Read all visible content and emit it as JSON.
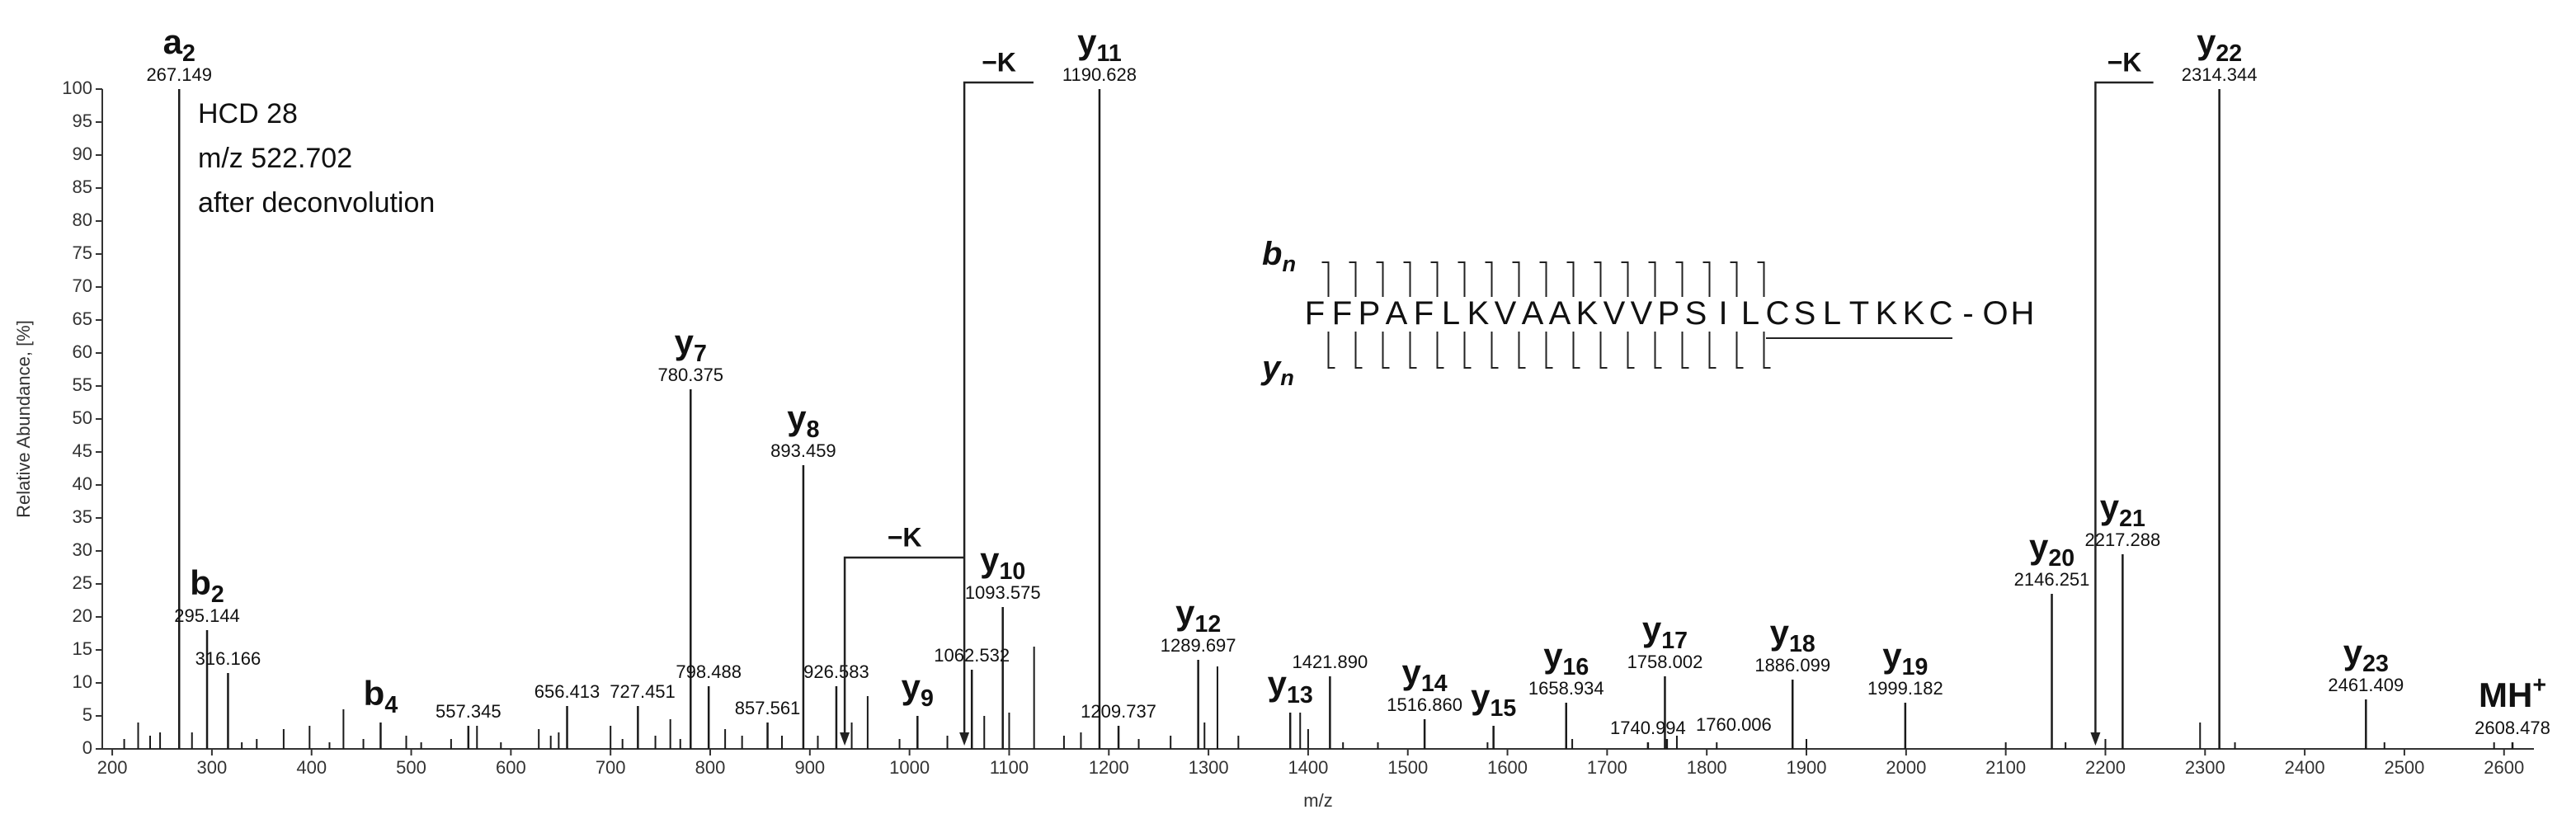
{
  "chart_data": {
    "type": "spectrum",
    "x_label": "m/z",
    "y_label": "Relative Abundance, [%]",
    "info": [
      "HCD 28",
      "m/z 522.702",
      "after deconvolution"
    ],
    "xlim": [
      190,
      2630
    ],
    "ylim": [
      0,
      100
    ],
    "xticks": [
      200,
      300,
      400,
      500,
      600,
      700,
      800,
      900,
      1000,
      1100,
      1200,
      1300,
      1400,
      1500,
      1600,
      1700,
      1800,
      1900,
      2000,
      2100,
      2200,
      2300,
      2400,
      2500,
      2600
    ],
    "yticks": [
      0,
      5,
      10,
      15,
      20,
      25,
      30,
      35,
      40,
      45,
      50,
      55,
      60,
      65,
      70,
      75,
      80,
      85,
      90,
      95,
      100
    ],
    "color": "#1a1a1a",
    "peaks": {
      "x": [
        267.149,
        295.144,
        316.166,
        469.3,
        557.345,
        656.413,
        727.451,
        780.375,
        798.488,
        857.561,
        893.459,
        926.583,
        1008,
        1062.532,
        1093.575,
        1190.628,
        1209.737,
        1289.697,
        1382,
        1421.89,
        1516.86,
        1586,
        1658.934,
        1740.994,
        1758.002,
        1760.006,
        1886.099,
        1999.182,
        2146.251,
        2217.288,
        2314.344,
        2461.409,
        2608.478
      ],
      "values": [
        100,
        18,
        11.5,
        4,
        3.5,
        6.5,
        6.5,
        54.5,
        9.5,
        4,
        43,
        9.5,
        5,
        12,
        21.5,
        100,
        3.5,
        13.5,
        5.5,
        11,
        4.5,
        3.5,
        7,
        1,
        11,
        1.5,
        10.5,
        7,
        23.5,
        29.5,
        100,
        7.5,
        1
      ],
      "mz_labels": [
        "267.149",
        "295.144",
        "316.166",
        null,
        "557.345",
        "656.413",
        "727.451",
        "780.375",
        "798.488",
        "857.561",
        "893.459",
        "926.583",
        null,
        "1062.532",
        "1093.575",
        "1190.628",
        "1209.737",
        "1289.697",
        null,
        "1421.890",
        "1516.860",
        null,
        "1658.934",
        "1740.994",
        "1758.002",
        "1760.006",
        "1886.099",
        "1999.182",
        "2146.251",
        "2217.288",
        "2314.344",
        "2461.409",
        "2608.478"
      ],
      "ions": [
        "a2",
        "b2",
        null,
        "b4",
        null,
        null,
        null,
        "y7",
        null,
        null,
        "y8",
        null,
        "y9",
        null,
        "y10",
        "y11",
        null,
        "y12",
        "y13",
        null,
        "y14",
        "y15",
        "y16",
        null,
        "y17",
        null,
        "y18",
        "y19",
        "y20",
        "y21",
        "y22",
        "y23",
        "MH+"
      ]
    },
    "minor_peaks": {
      "x": [
        212,
        226,
        238,
        248,
        280,
        330,
        345,
        372,
        398,
        418,
        432,
        452,
        495,
        510,
        540,
        566,
        590,
        628,
        640,
        648,
        700,
        712,
        745,
        760,
        770,
        815,
        832,
        872,
        908,
        942,
        958,
        990,
        1038,
        1075,
        1100,
        1125,
        1155,
        1172,
        1230,
        1262,
        1296,
        1309,
        1330,
        1392,
        1400,
        1435,
        1470,
        1580,
        1665,
        1770,
        1810,
        1900,
        2100,
        2160,
        2200,
        2295,
        2330,
        2480,
        2590
      ],
      "values": [
        1.5,
        4,
        2,
        2.5,
        2.5,
        1,
        1.5,
        3,
        3.5,
        1,
        6,
        1.5,
        2,
        1,
        1.5,
        3.5,
        1,
        3,
        2,
        2.5,
        3.5,
        1.5,
        2,
        4.5,
        1.5,
        3,
        2,
        2,
        2,
        4,
        8,
        1.5,
        2,
        5,
        5.5,
        15.5,
        2,
        2.5,
        1.5,
        2,
        4,
        12.5,
        2,
        5.5,
        3,
        1,
        1,
        1,
        1.5,
        2,
        1,
        1.5,
        1,
        1,
        1.5,
        4,
        1,
        1,
        1
      ]
    },
    "losses": [
      {
        "label": "−K",
        "from": 1190.628,
        "to": 1055,
        "level": 101
      },
      {
        "label": "−K",
        "from": 1055,
        "to": 935,
        "level": 29
      },
      {
        "label": "−K",
        "from": 2314.344,
        "to": 2190,
        "level": 101
      }
    ],
    "sequence": "FFPAFLKVAAKVVPSILCSLTKKC-OH",
    "b_label": "bn",
    "y_label_seq": "yn"
  }
}
